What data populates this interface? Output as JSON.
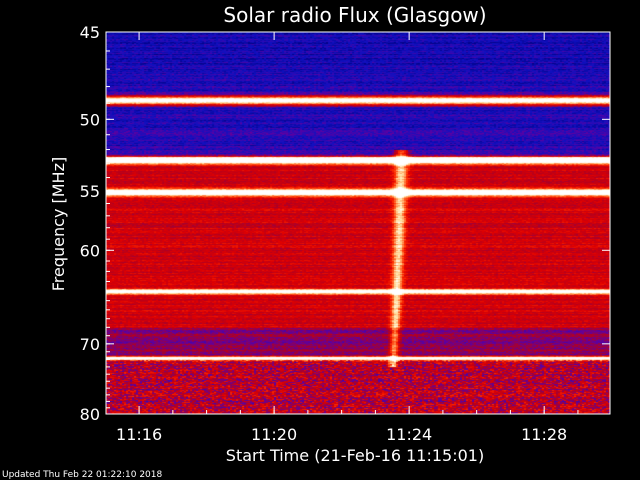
{
  "footer_text": "Updated Thu Feb 22 01:22:10 2018",
  "chart_data": {
    "type": "heatmap",
    "title": "Solar radio Flux (Glasgow)",
    "xlabel": "Start Time (21-Feb-16 11:15:01)",
    "ylabel": "Frequency [MHz]",
    "x_ticks": [
      "11:16",
      "11:20",
      "11:24",
      "11:28"
    ],
    "x_tick_minutes": [
      16,
      20,
      24,
      28
    ],
    "xlim_minutes": [
      15.02,
      29.95
    ],
    "y_ticks": [
      45,
      50,
      55,
      60,
      70,
      80
    ],
    "ylim": [
      45,
      80
    ],
    "y_scale": "reciprocal",
    "colormap": [
      "#000080",
      "#1010c0",
      "#6000a0",
      "#b00020",
      "#e00000",
      "#ff3000",
      "#ff8040",
      "#ffe0a0",
      "#ffffff"
    ],
    "bright_bands_mhz": [
      {
        "mhz": 48.8,
        "level": 1.0
      },
      {
        "mhz": 52.7,
        "level": 0.95
      },
      {
        "mhz": 55.1,
        "level": 0.85
      },
      {
        "mhz": 64.0,
        "level": 0.75
      },
      {
        "mhz": 71.8,
        "level": 0.9
      }
    ],
    "burst": {
      "start_minute": 23.6,
      "peak_minute": 23.75,
      "freq_range_mhz": [
        52,
        73
      ],
      "description_text": ""
    }
  }
}
